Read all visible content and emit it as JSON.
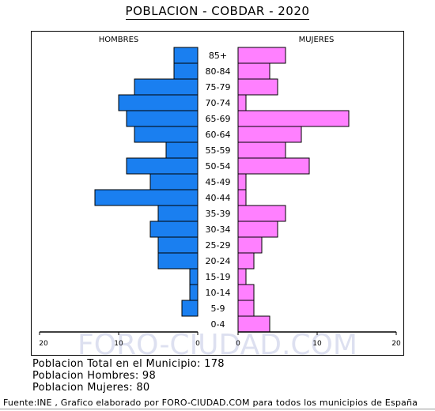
{
  "title": "POBLACION - COBDAR - 2020",
  "watermark": "FORO-CIUDAD.COM",
  "chart_data": {
    "type": "bar",
    "subtype": "population-pyramid",
    "categories": [
      "85+",
      "80-84",
      "75-79",
      "70-74",
      "65-69",
      "60-64",
      "55-59",
      "50-54",
      "45-49",
      "40-44",
      "35-39",
      "30-34",
      "25-29",
      "20-24",
      "15-19",
      "10-14",
      "5-9",
      "0-4"
    ],
    "series": [
      {
        "name": "HOMBRES",
        "color": "#1a7ff0",
        "values": [
          3,
          3,
          8,
          10,
          9,
          8,
          4,
          9,
          6,
          13,
          5,
          6,
          5,
          5,
          1,
          1,
          2,
          0
        ]
      },
      {
        "name": "MUJERES",
        "color": "#ff80ff",
        "values": [
          6,
          4,
          5,
          1,
          14,
          8,
          6,
          9,
          1,
          1,
          6,
          5,
          3,
          2,
          1,
          2,
          2,
          4
        ]
      }
    ],
    "xlim": [
      -20,
      20
    ],
    "x_ticks": [
      "20",
      "10",
      "0",
      "0",
      "10",
      "20"
    ],
    "legend": "top"
  },
  "summary": {
    "total": "Poblacion Total en el Municipio: 178",
    "men": "Poblacion Hombres: 98",
    "women": "Poblacion Mujeres: 80"
  },
  "footer": "Fuente:INE , Grafico elaborado por FORO-CIUDAD.COM para todos los municipios de España"
}
